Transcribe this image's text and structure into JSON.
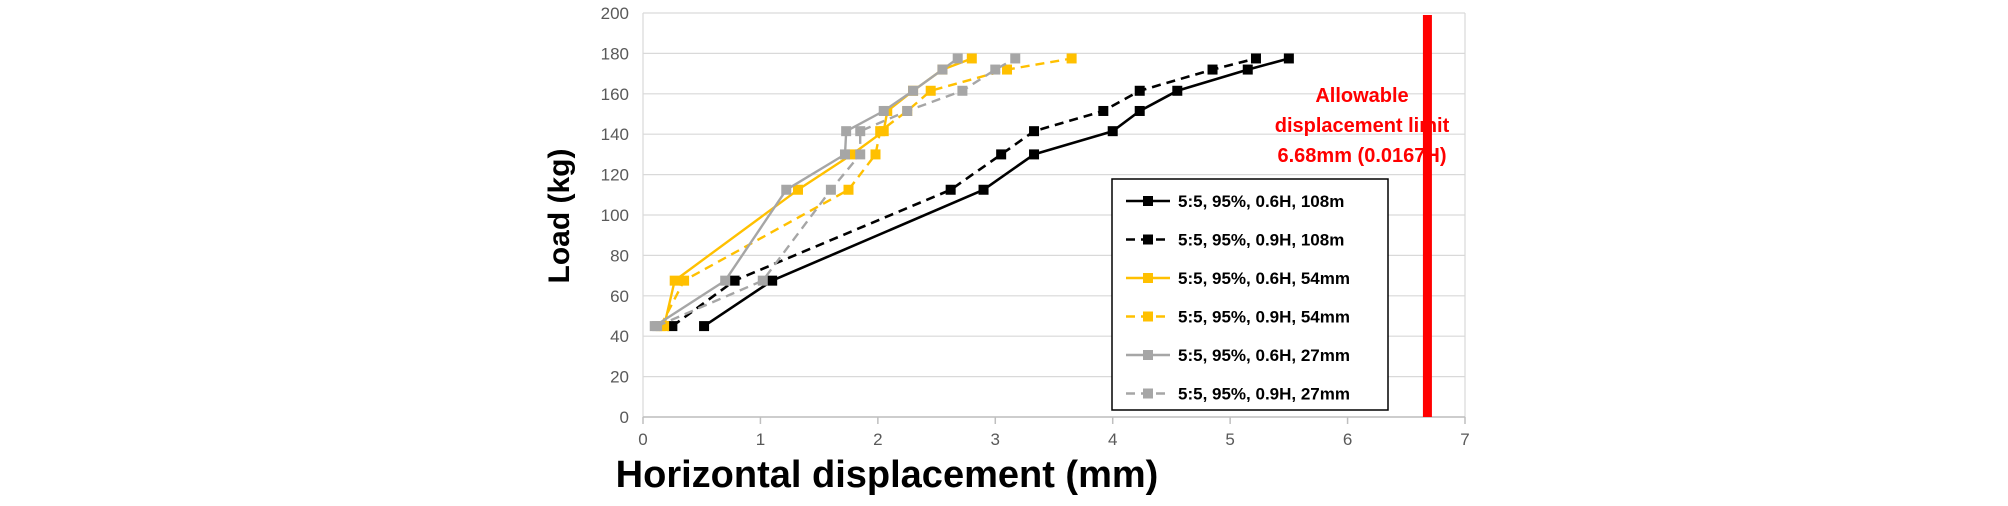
{
  "chart_data": {
    "type": "line",
    "xlabel": "Horizontal displacement (mm)",
    "ylabel": "Load (kg)",
    "xlim": [
      0,
      7
    ],
    "ylim": [
      0,
      200
    ],
    "x_ticks": [
      0,
      1,
      2,
      3,
      4,
      5,
      6,
      7
    ],
    "y_ticks": [
      0,
      20,
      40,
      60,
      80,
      100,
      120,
      140,
      160,
      180,
      200
    ],
    "grid": "horizontal major gridlines only",
    "legend_position": "right, inside plot area",
    "annotation": {
      "lines": [
        "Allowable",
        "displacement limit",
        "6.68mm (0.0167H)"
      ],
      "x_value": 6.68,
      "color": "#FF0000"
    },
    "series": [
      {
        "name": "5:5, 95%, 0.6H, 108m",
        "color": "#000000",
        "dash": "solid",
        "points": [
          [
            0.52,
            45
          ],
          [
            1.1,
            67.5
          ],
          [
            2.9,
            112.5
          ],
          [
            3.33,
            130
          ],
          [
            4.0,
            141.5
          ],
          [
            4.23,
            151.5
          ],
          [
            4.55,
            161.5
          ],
          [
            5.15,
            172
          ],
          [
            5.5,
            177.5
          ]
        ]
      },
      {
        "name": "5:5, 95%, 0.9H, 108m",
        "color": "#000000",
        "dash": "dashed",
        "points": [
          [
            0.25,
            45
          ],
          [
            0.78,
            67.5
          ],
          [
            2.62,
            112.5
          ],
          [
            3.05,
            130
          ],
          [
            3.33,
            141.5
          ],
          [
            3.92,
            151.5
          ],
          [
            4.23,
            161.5
          ],
          [
            4.85,
            172
          ],
          [
            5.22,
            177.5
          ]
        ]
      },
      {
        "name": "5:5, 95%, 0.6H, 54mm",
        "color": "#FFC000",
        "dash": "solid",
        "points": [
          [
            0.18,
            45
          ],
          [
            0.27,
            67.5
          ],
          [
            1.32,
            112.5
          ],
          [
            1.78,
            130
          ],
          [
            2.05,
            141.5
          ],
          [
            2.08,
            151.5
          ],
          [
            2.3,
            161.5
          ],
          [
            2.55,
            172
          ],
          [
            2.8,
            177.5
          ]
        ]
      },
      {
        "name": "5:5, 95%, 0.9H, 54mm",
        "color": "#FFC000",
        "dash": "dashed",
        "points": [
          [
            0.15,
            45
          ],
          [
            0.35,
            67.5
          ],
          [
            1.75,
            112.5
          ],
          [
            1.98,
            130
          ],
          [
            2.02,
            141.5
          ],
          [
            2.25,
            151.5
          ],
          [
            2.45,
            161.5
          ],
          [
            3.1,
            172
          ],
          [
            3.65,
            177.5
          ]
        ]
      },
      {
        "name": "5:5, 95%, 0.6H, 27mm",
        "color": "#A6A6A6",
        "dash": "solid",
        "points": [
          [
            0.1,
            45
          ],
          [
            0.7,
            67.5
          ],
          [
            1.22,
            112.5
          ],
          [
            1.72,
            130
          ],
          [
            1.73,
            141.5
          ],
          [
            2.05,
            151.5
          ],
          [
            2.3,
            161.5
          ],
          [
            2.55,
            172
          ],
          [
            2.68,
            177.5
          ]
        ]
      },
      {
        "name": "5:5, 95%, 0.9H, 27mm",
        "color": "#A6A6A6",
        "dash": "dashed",
        "points": [
          [
            0.12,
            45
          ],
          [
            1.02,
            67.5
          ],
          [
            1.6,
            112.5
          ],
          [
            1.85,
            130
          ],
          [
            1.85,
            141.5
          ],
          [
            2.25,
            151.5
          ],
          [
            2.72,
            161.5
          ],
          [
            3.0,
            172
          ],
          [
            3.17,
            177.5
          ]
        ]
      }
    ]
  }
}
